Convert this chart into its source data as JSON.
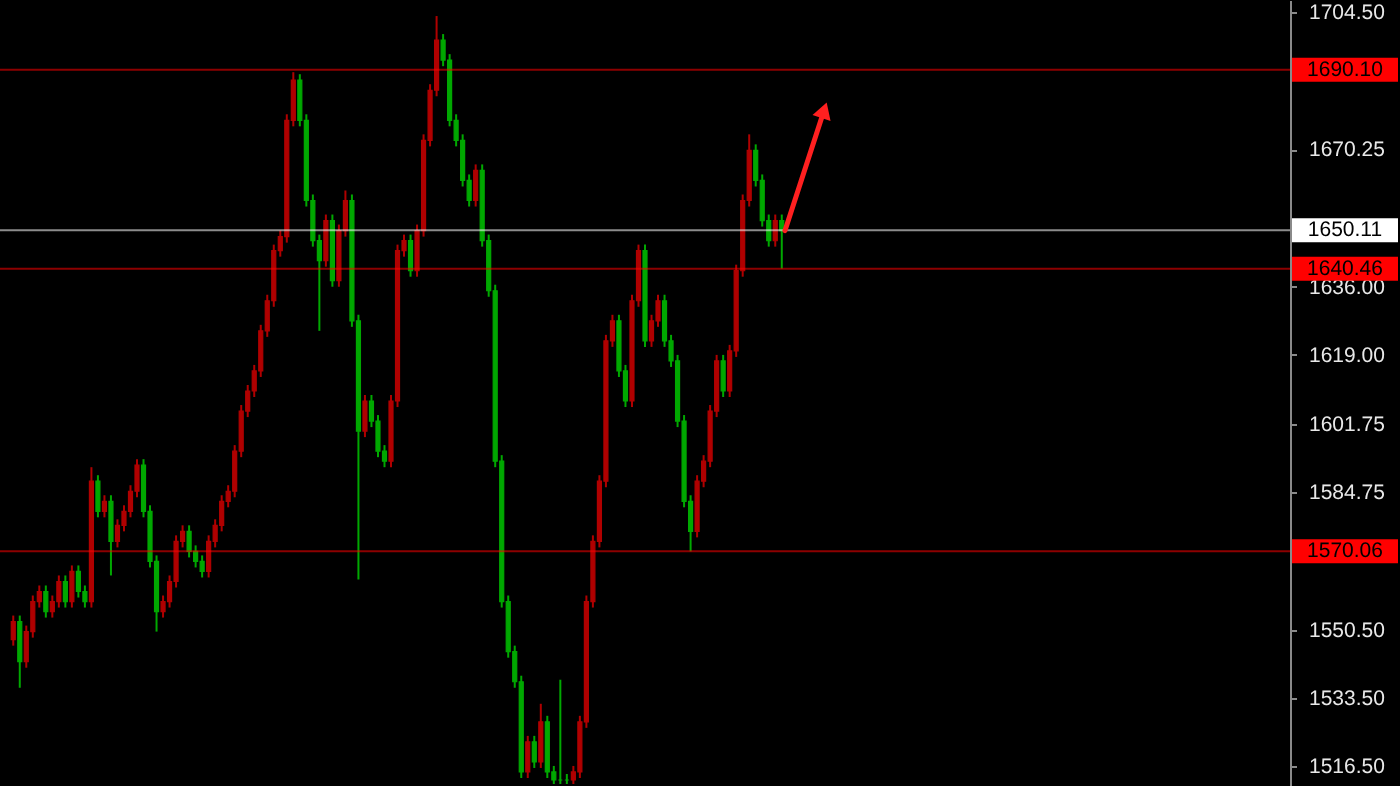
{
  "chart_data": {
    "type": "candlestick",
    "categories": [
      null,
      null,
      null,
      null,
      null,
      null,
      null,
      null,
      null,
      null,
      null,
      null,
      null,
      null,
      null,
      null,
      null,
      null,
      null,
      null,
      null,
      null,
      null,
      null,
      null,
      null,
      null,
      null,
      null,
      null,
      null,
      null,
      null,
      null,
      null,
      null,
      null,
      null,
      null,
      null,
      null,
      null,
      null,
      null,
      null,
      null,
      null,
      null,
      null,
      null,
      null,
      null,
      null,
      null,
      null,
      null,
      null,
      null,
      null,
      null,
      null,
      null,
      null,
      null,
      null,
      null,
      null,
      null,
      null,
      null,
      null,
      null,
      null,
      null,
      null,
      null,
      null,
      null,
      null,
      null,
      null,
      null,
      null,
      null,
      null,
      null,
      null,
      null,
      null,
      null,
      null,
      null,
      null,
      null,
      null,
      null,
      null,
      null,
      null,
      null,
      null,
      null,
      null,
      null,
      null,
      null,
      null,
      null,
      null,
      null,
      null,
      null,
      null,
      null,
      null,
      null,
      null,
      null,
      null,
      null,
      null,
      null,
      null,
      null,
      null,
      null,
      null,
      null,
      null,
      null,
      null,
      null,
      null,
      null,
      null,
      null,
      null,
      null,
      null,
      null,
      null,
      null,
      null,
      null,
      null,
      null,
      null,
      null,
      null,
      null,
      null,
      null,
      null,
      null,
      null,
      null,
      null,
      null,
      null,
      null,
      null,
      null,
      null,
      null,
      null,
      null,
      null,
      null,
      null,
      null,
      null,
      null,
      null,
      null,
      null,
      null,
      null,
      null,
      null,
      null,
      null,
      null,
      null,
      null,
      null,
      null,
      null,
      null,
      null,
      null,
      null,
      null,
      null,
      null,
      null
    ],
    "ohlc": [
      [
        1548,
        1554,
        1546.5,
        1552.5
      ],
      [
        1552.5,
        1554,
        1536,
        1542.5
      ],
      [
        1542.5,
        1551.5,
        1541,
        1550
      ],
      [
        1550,
        1559,
        1548.5,
        1557.5
      ],
      [
        1557.5,
        1561.5,
        1556,
        1560
      ],
      [
        1560,
        1561.5,
        1553.5,
        1555
      ],
      [
        1555,
        1559,
        1553.5,
        1557.5
      ],
      [
        1557.5,
        1564,
        1556,
        1562.5
      ],
      [
        1562.5,
        1564,
        1556,
        1557.5
      ],
      [
        1557.5,
        1566.5,
        1556,
        1565
      ],
      [
        1565,
        1566.5,
        1558.5,
        1560
      ],
      [
        1560,
        1561.5,
        1556,
        1557.5
      ],
      [
        1557.5,
        1591,
        1556,
        1587.5
      ],
      [
        1587.5,
        1589,
        1578.5,
        1580
      ],
      [
        1580,
        1584,
        1578.5,
        1582.5
      ],
      [
        1582.5,
        1584,
        1564,
        1572.5
      ],
      [
        1572.5,
        1578,
        1571,
        1576.5
      ],
      [
        1576.5,
        1581.5,
        1575,
        1580
      ],
      [
        1580,
        1586.5,
        1578.5,
        1585
      ],
      [
        1585,
        1593,
        1583.5,
        1591.5
      ],
      [
        1591.5,
        1593,
        1578.5,
        1580
      ],
      [
        1580,
        1581.5,
        1566,
        1567.5
      ],
      [
        1567.5,
        1569,
        1550,
        1555
      ],
      [
        1555,
        1559,
        1553.5,
        1557.5
      ],
      [
        1557.5,
        1564,
        1556,
        1562.5
      ],
      [
        1562.5,
        1574,
        1561,
        1572.5
      ],
      [
        1572.5,
        1576.5,
        1571,
        1575
      ],
      [
        1575,
        1576.5,
        1568.5,
        1570
      ],
      [
        1570,
        1571.5,
        1566,
        1567.5
      ],
      [
        1567.5,
        1569,
        1563.5,
        1565
      ],
      [
        1565,
        1574,
        1563.5,
        1572.5
      ],
      [
        1572.5,
        1578,
        1571,
        1576.5
      ],
      [
        1576.5,
        1584,
        1575,
        1582.5
      ],
      [
        1582.5,
        1586.5,
        1581,
        1585
      ],
      [
        1585,
        1596.5,
        1583.5,
        1595
      ],
      [
        1595,
        1606.5,
        1593.5,
        1605
      ],
      [
        1605,
        1611.5,
        1603.5,
        1610
      ],
      [
        1610,
        1616.5,
        1608.5,
        1615
      ],
      [
        1615,
        1626.5,
        1613.5,
        1625
      ],
      [
        1625,
        1634,
        1623.5,
        1632.5
      ],
      [
        1632.5,
        1646.5,
        1631,
        1645
      ],
      [
        1645,
        1650,
        1643.5,
        1648.5
      ],
      [
        1648.5,
        1679,
        1647,
        1677.5
      ],
      [
        1677.5,
        1689.5,
        1676,
        1687.5
      ],
      [
        1687.5,
        1689,
        1676,
        1677.5
      ],
      [
        1677.5,
        1679,
        1656,
        1657.5
      ],
      [
        1657.5,
        1659,
        1646,
        1647.5
      ],
      [
        1647.5,
        1649,
        1625,
        1642.5
      ],
      [
        1642.5,
        1654,
        1641,
        1652.5
      ],
      [
        1652.5,
        1654,
        1636,
        1637.5
      ],
      [
        1637.5,
        1651.5,
        1636,
        1650
      ],
      [
        1650,
        1660,
        1648.5,
        1657.5
      ],
      [
        1657.5,
        1659,
        1626,
        1627.5
      ],
      [
        1627.5,
        1629,
        1563,
        1600
      ],
      [
        1600,
        1609,
        1598.5,
        1607.5
      ],
      [
        1607.5,
        1609,
        1601,
        1602.5
      ],
      [
        1602.5,
        1604,
        1593.5,
        1595
      ],
      [
        1595,
        1596.5,
        1591,
        1592.5
      ],
      [
        1592.5,
        1609,
        1591,
        1607.5
      ],
      [
        1607.5,
        1646.5,
        1606,
        1645
      ],
      [
        1645,
        1649,
        1643.5,
        1647.5
      ],
      [
        1647.5,
        1649,
        1638.5,
        1640
      ],
      [
        1640,
        1651.5,
        1638.5,
        1650
      ],
      [
        1650,
        1674,
        1648.5,
        1672.5
      ],
      [
        1672.5,
        1686.5,
        1671,
        1685
      ],
      [
        1685,
        1703.5,
        1683.5,
        1697.5
      ],
      [
        1697.5,
        1699,
        1691,
        1692.5
      ],
      [
        1692.5,
        1694,
        1676,
        1677.5
      ],
      [
        1677.5,
        1679,
        1671,
        1672.5
      ],
      [
        1672.5,
        1674,
        1661,
        1662.5
      ],
      [
        1662.5,
        1664,
        1656,
        1657.5
      ],
      [
        1657.5,
        1666.5,
        1656,
        1665
      ],
      [
        1665,
        1666.5,
        1646,
        1647.5
      ],
      [
        1647.5,
        1649,
        1633.5,
        1635
      ],
      [
        1635,
        1636.5,
        1591,
        1592.5
      ],
      [
        1592.5,
        1594,
        1556,
        1557.5
      ],
      [
        1557.5,
        1559,
        1543.5,
        1545
      ],
      [
        1545,
        1546.5,
        1536,
        1537.5
      ],
      [
        1537.5,
        1539,
        1513.5,
        1515
      ],
      [
        1515,
        1524,
        1513.5,
        1522.5
      ],
      [
        1522.5,
        1524,
        1516,
        1517.5
      ],
      [
        1517.5,
        1532,
        1516,
        1527.5
      ],
      [
        1527.5,
        1529,
        1513.5,
        1515
      ],
      [
        1515,
        1516.5,
        1512,
        1513
      ],
      [
        1513,
        1538,
        1512,
        1513
      ],
      [
        1513,
        1514.5,
        1512,
        1513
      ],
      [
        1513,
        1516.5,
        1512,
        1515
      ],
      [
        1515,
        1529,
        1513.5,
        1527.5
      ],
      [
        1527.5,
        1559,
        1526,
        1557.5
      ],
      [
        1557.5,
        1574,
        1556,
        1572.5
      ],
      [
        1572.5,
        1589,
        1571,
        1587.5
      ],
      [
        1587.5,
        1624,
        1586,
        1622.5
      ],
      [
        1622.5,
        1629,
        1621,
        1627.5
      ],
      [
        1627.5,
        1629,
        1613.5,
        1615
      ],
      [
        1615,
        1616.5,
        1606,
        1607.5
      ],
      [
        1607.5,
        1634,
        1606,
        1632.5
      ],
      [
        1632.5,
        1646.5,
        1631,
        1645
      ],
      [
        1645,
        1646.5,
        1621,
        1622.5
      ],
      [
        1622.5,
        1629,
        1621,
        1627.5
      ],
      [
        1627.5,
        1634,
        1626,
        1632.5
      ],
      [
        1632.5,
        1634,
        1621,
        1622.5
      ],
      [
        1622.5,
        1624,
        1616,
        1617.5
      ],
      [
        1617.5,
        1619,
        1601,
        1602.5
      ],
      [
        1602.5,
        1604,
        1581,
        1582.5
      ],
      [
        1582.5,
        1584,
        1570,
        1575
      ],
      [
        1575,
        1589,
        1573.5,
        1587.5
      ],
      [
        1587.5,
        1594,
        1586,
        1592.5
      ],
      [
        1592.5,
        1606.5,
        1591,
        1605
      ],
      [
        1605,
        1619,
        1603.5,
        1617.5
      ],
      [
        1617.5,
        1619,
        1608.5,
        1610
      ],
      [
        1610,
        1621.5,
        1608.5,
        1620
      ],
      [
        1620,
        1641.5,
        1618.5,
        1640
      ],
      [
        1640,
        1659,
        1638.5,
        1657.5
      ],
      [
        1657.5,
        1674,
        1656,
        1670
      ],
      [
        1670,
        1671.5,
        1661,
        1662.5
      ],
      [
        1662.5,
        1664,
        1651,
        1652.5
      ],
      [
        1652.5,
        1654,
        1646,
        1647.5
      ],
      [
        1647.5,
        1654,
        1646,
        1652.5
      ],
      [
        1652.5,
        1654,
        1640.5,
        1650
      ],
      null,
      null,
      null,
      null,
      null,
      null,
      null,
      null,
      null,
      null,
      null,
      null,
      null,
      null,
      null,
      null,
      null,
      null,
      null,
      null,
      null,
      null,
      null,
      null,
      null,
      null,
      null,
      null,
      null,
      null,
      null,
      null,
      null,
      null,
      null,
      null,
      null,
      null,
      null,
      null,
      null,
      null,
      null,
      null,
      null,
      null,
      null,
      null,
      null,
      null,
      null,
      null,
      null,
      null,
      null,
      null,
      null,
      null,
      null,
      null,
      null,
      null,
      null,
      null,
      null,
      null,
      null,
      null,
      null,
      null,
      null,
      null,
      null,
      null,
      null,
      null
    ],
    "colors": [
      "#b00000",
      "#00a800",
      "#b00000",
      "#b00000",
      "#b00000",
      "#00a800",
      "#b00000",
      "#b00000",
      "#00a800",
      "#b00000",
      "#00a800",
      "#00a800",
      "#b00000",
      "#00a800",
      "#b00000",
      "#00a800",
      "#b00000",
      "#b00000",
      "#b00000",
      "#b00000",
      "#00a800",
      "#00a800",
      "#00a800",
      "#b00000",
      "#b00000",
      "#b00000",
      "#b00000",
      "#00a800",
      "#00a800",
      "#00a800",
      "#b00000",
      "#b00000",
      "#b00000",
      "#b00000",
      "#b00000",
      "#b00000",
      "#b00000",
      "#b00000",
      "#b00000",
      "#b00000",
      "#b00000",
      "#b00000",
      "#b00000",
      "#b00000",
      "#00a800",
      "#00a800",
      "#00a800",
      "#00a800",
      "#b00000",
      "#00a800",
      "#b00000",
      "#b00000",
      "#00a800",
      "#00a800",
      "#b00000",
      "#00a800",
      "#00a800",
      "#00a800",
      "#b00000",
      "#b00000",
      "#b00000",
      "#00a800",
      "#b00000",
      "#b00000",
      "#b00000",
      "#b00000",
      "#00a800",
      "#00a800",
      "#00a800",
      "#00a800",
      "#00a800",
      "#b00000",
      "#00a800",
      "#00a800",
      "#00a800",
      "#00a800",
      "#00a800",
      "#00a800",
      "#00a800",
      "#b00000",
      "#00a800",
      "#b00000",
      "#00a800",
      "#00a800",
      "#00a800",
      "#00a800",
      "#b00000",
      "#b00000",
      "#b00000",
      "#b00000",
      "#b00000",
      "#b00000",
      "#b00000",
      "#00a800",
      "#00a800",
      "#b00000",
      "#b00000",
      "#00a800",
      "#b00000",
      "#b00000",
      "#00a800",
      "#00a800",
      "#00a800",
      "#00a800",
      "#00a800",
      "#b00000",
      "#b00000",
      "#b00000",
      "#b00000",
      "#00a800",
      "#b00000",
      "#b00000",
      "#b00000",
      "#b00000",
      "#00a800",
      "#00a800",
      "#00a800",
      "#b00000",
      "#00a800",
      null,
      null,
      null,
      null,
      null,
      null,
      null,
      null,
      null,
      null,
      null,
      null,
      null,
      null,
      null,
      null,
      null,
      null,
      null,
      null,
      null,
      null,
      null,
      null,
      null,
      null,
      null,
      null,
      null,
      null,
      null,
      null,
      null,
      null,
      null,
      null,
      null,
      null,
      null,
      null,
      null,
      null,
      null,
      null,
      null,
      null,
      null,
      null,
      null,
      null,
      null,
      null,
      null,
      null,
      null,
      null,
      null,
      null,
      null,
      null,
      null,
      null,
      null,
      null,
      null,
      null,
      null,
      null,
      null,
      null,
      null,
      null,
      null,
      null,
      null,
      null
    ],
    "ylim": [
      1511.5,
      1707.5
    ],
    "yticks": [
      {
        "value": 1704.5,
        "label": "1704.50"
      },
      {
        "value": 1670.25,
        "label": "1670.25"
      },
      {
        "value": 1636,
        "label": "1636.00"
      },
      {
        "value": 1619,
        "label": "1619.00"
      },
      {
        "value": 1601.75,
        "label": "1601.75"
      },
      {
        "value": 1584.75,
        "label": "1584.75"
      },
      {
        "value": 1550.5,
        "label": "1550.50"
      },
      {
        "value": 1533.5,
        "label": "1533.50"
      },
      {
        "value": 1516.5,
        "label": "1516.50"
      }
    ],
    "ref_lines": [
      {
        "axis": "y",
        "value": 1690.1,
        "label": "1690.10",
        "color": "#ff0000"
      },
      {
        "axis": "y",
        "value": 1650.11,
        "label": "1650.11",
        "color": "#ffffff"
      },
      {
        "axis": "y",
        "value": 1640.46,
        "label": "1640.46",
        "color": "#ff0000"
      },
      {
        "axis": "y",
        "value": 1570.06,
        "label": "1570.06",
        "color": "#ff0000"
      }
    ],
    "grid": false,
    "tick_labels": "y"
  }
}
